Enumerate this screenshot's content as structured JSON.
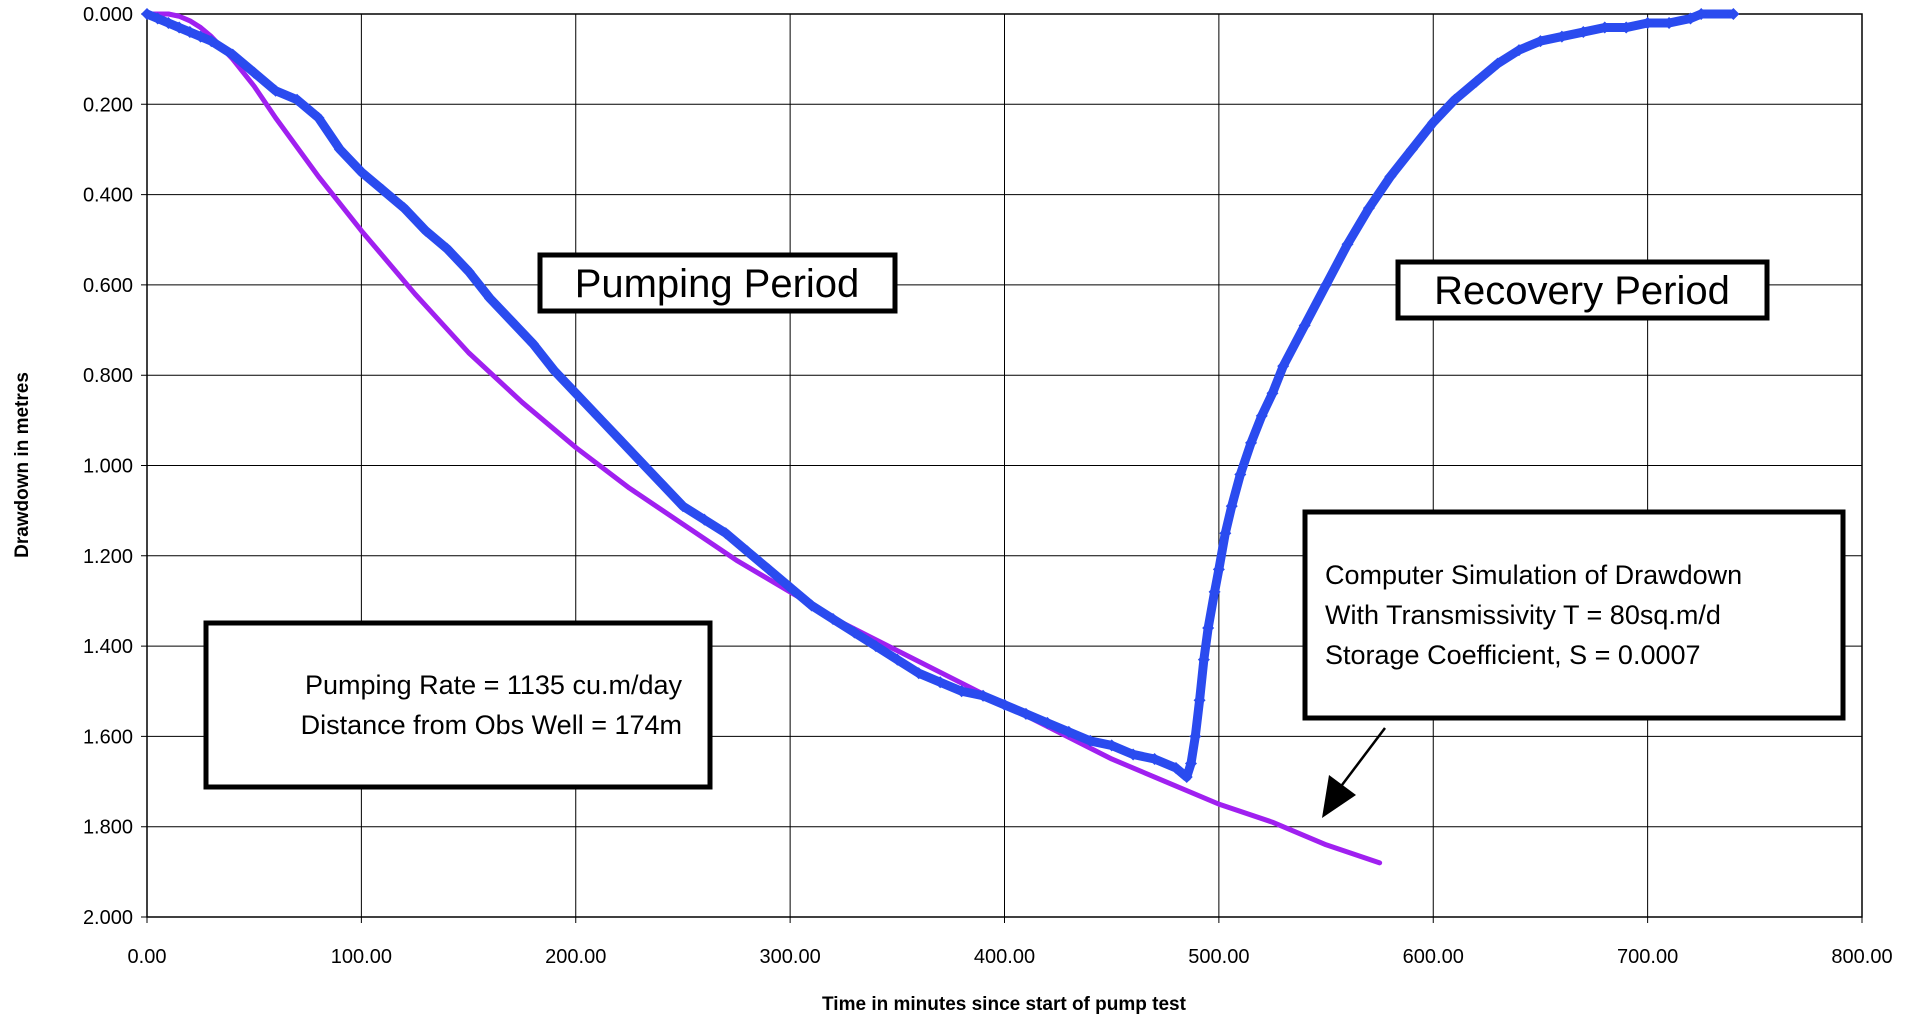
{
  "chart_data": {
    "type": "scatter",
    "xlabel": "Time in minutes since start of pump test",
    "ylabel": "Drawdown in metres",
    "xlim": [
      0,
      800
    ],
    "ylim": [
      0,
      2
    ],
    "y_inverted": true,
    "grid": true,
    "x_ticks": [
      "0.00",
      "100.00",
      "200.00",
      "300.00",
      "400.00",
      "500.00",
      "600.00",
      "700.00",
      "800.00"
    ],
    "y_ticks": [
      "0.000",
      "0.200",
      "0.400",
      "0.600",
      "0.800",
      "1.000",
      "1.200",
      "1.400",
      "1.600",
      "1.800",
      "2.000"
    ],
    "x_tick_values": [
      0,
      100,
      200,
      300,
      400,
      500,
      600,
      700,
      800
    ],
    "y_tick_values": [
      0,
      0.2,
      0.4,
      0.6,
      0.8,
      1.0,
      1.2,
      1.4,
      1.6,
      1.8,
      2.0
    ],
    "series": [
      {
        "kind": "observed",
        "color": "#2a4bef",
        "marker": "diamond",
        "x": [
          0,
          5,
          10,
          15,
          20,
          25,
          30,
          40,
          50,
          60,
          70,
          80,
          90,
          100,
          110,
          120,
          130,
          140,
          150,
          160,
          170,
          180,
          190,
          200,
          210,
          220,
          230,
          240,
          250,
          260,
          270,
          280,
          290,
          300,
          310,
          320,
          330,
          340,
          350,
          360,
          370,
          380,
          390,
          400,
          410,
          420,
          430,
          440,
          450,
          460,
          470,
          480,
          485,
          487,
          489,
          491,
          493,
          495,
          498,
          500,
          503,
          506,
          510,
          515,
          520,
          525,
          530,
          540,
          550,
          560,
          570,
          580,
          590,
          600,
          610,
          620,
          630,
          640,
          650,
          660,
          670,
          680,
          690,
          700,
          710,
          720,
          725,
          740
        ],
        "y": [
          0.0,
          0.01,
          0.02,
          0.03,
          0.04,
          0.05,
          0.06,
          0.09,
          0.13,
          0.17,
          0.19,
          0.23,
          0.3,
          0.35,
          0.39,
          0.43,
          0.48,
          0.52,
          0.57,
          0.63,
          0.68,
          0.73,
          0.79,
          0.84,
          0.89,
          0.94,
          0.99,
          1.04,
          1.09,
          1.12,
          1.15,
          1.19,
          1.23,
          1.27,
          1.31,
          1.34,
          1.37,
          1.4,
          1.43,
          1.46,
          1.48,
          1.5,
          1.51,
          1.53,
          1.55,
          1.57,
          1.59,
          1.61,
          1.62,
          1.64,
          1.65,
          1.67,
          1.69,
          1.66,
          1.6,
          1.52,
          1.43,
          1.36,
          1.28,
          1.23,
          1.15,
          1.09,
          1.02,
          0.95,
          0.89,
          0.84,
          0.78,
          0.69,
          0.6,
          0.51,
          0.43,
          0.36,
          0.3,
          0.24,
          0.19,
          0.15,
          0.11,
          0.08,
          0.06,
          0.05,
          0.04,
          0.03,
          0.03,
          0.02,
          0.02,
          0.01,
          0.0,
          0.0
        ]
      },
      {
        "kind": "simulation",
        "color": "#a020f0",
        "x": [
          0,
          5,
          10,
          15,
          20,
          25,
          30,
          40,
          50,
          60,
          80,
          100,
          125,
          150,
          175,
          200,
          225,
          250,
          275,
          300,
          325,
          350,
          375,
          400,
          425,
          450,
          475,
          500,
          525,
          550,
          575
        ],
        "y": [
          0.0,
          0.0,
          0.0,
          0.005,
          0.015,
          0.03,
          0.05,
          0.1,
          0.16,
          0.23,
          0.36,
          0.48,
          0.62,
          0.75,
          0.86,
          0.96,
          1.05,
          1.13,
          1.21,
          1.28,
          1.35,
          1.41,
          1.47,
          1.53,
          1.59,
          1.65,
          1.7,
          1.75,
          1.79,
          1.84,
          1.88
        ]
      }
    ],
    "annotations": {
      "pumping_period": "Pumping Period",
      "recovery_period": "Recovery Period",
      "pump_info_line1": "Pumping Rate = 1135 cu.m/day",
      "pump_info_line2": "Distance from Obs Well = 174m",
      "sim_line1": "Computer Simulation of Drawdown",
      "sim_line2": "With Transmissivity  T = 80sq.m/d",
      "sim_line3": "Storage Coefficient, S = 0.0007"
    }
  }
}
